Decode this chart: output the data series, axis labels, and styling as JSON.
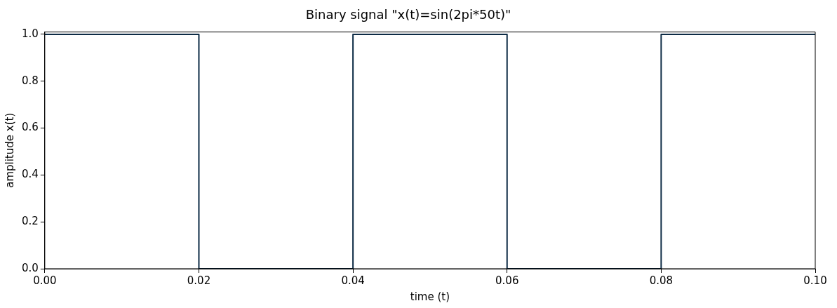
{
  "chart_data": {
    "type": "line",
    "title": "Binary signal \"x(t)=sin(2pi*50t)\"",
    "xlabel": "time (t)",
    "ylabel": "amplitude x(t)",
    "x": [
      0,
      0.02,
      0.02,
      0.04,
      0.04,
      0.06,
      0.06,
      0.08,
      0.08,
      0.1
    ],
    "series": [
      {
        "color": "#0d2b45",
        "values": [
          1,
          1,
          0,
          0,
          1,
          1,
          0,
          0,
          1,
          1
        ]
      }
    ],
    "xlim": [
      0,
      0.1
    ],
    "ylim": [
      0,
      1.01
    ],
    "xticks": [
      {
        "value": 0,
        "label": "0.00"
      },
      {
        "value": 0.02,
        "label": "0.02"
      },
      {
        "value": 0.04,
        "label": "0.04"
      },
      {
        "value": 0.06,
        "label": "0.06"
      },
      {
        "value": 0.08,
        "label": "0.08"
      },
      {
        "value": 0.1,
        "label": "0.10"
      }
    ],
    "yticks": [
      {
        "value": 0,
        "label": "0.0"
      },
      {
        "value": 0.2,
        "label": "0.2"
      },
      {
        "value": 0.4,
        "label": "0.4"
      },
      {
        "value": 0.6,
        "label": "0.6"
      },
      {
        "value": 0.8,
        "label": "0.8"
      },
      {
        "value": 1,
        "label": "1.0"
      }
    ],
    "grid": false,
    "legend": false,
    "marker": "none",
    "line_style": "solid"
  }
}
